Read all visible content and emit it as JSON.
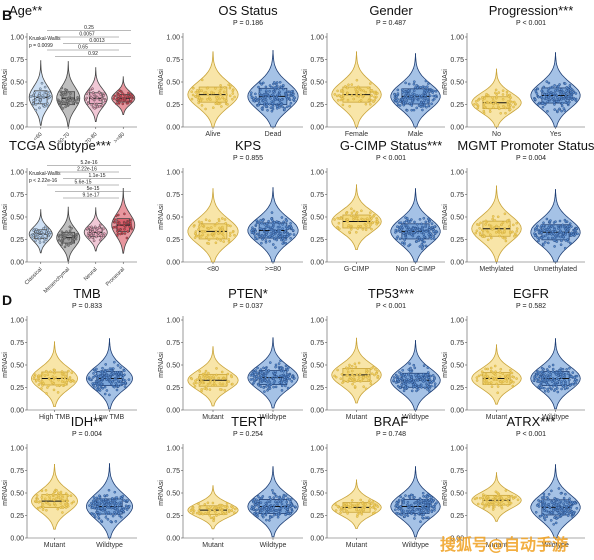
{
  "panel_labels": [
    "B",
    "D"
  ],
  "watermark_text": "搜狐号@自动手游",
  "colors": {
    "yellow": "#f2d060",
    "yellow_stroke": "#c9a43a",
    "blue": "#5b8fd1",
    "blue_stroke": "#1f3f75",
    "light_blue": "#a8c8ec",
    "grey": "#8a8a8a",
    "pink": "#e69ab4",
    "red": "#d6404e"
  },
  "chart_data": [
    {
      "type": "violin",
      "title": "Age**",
      "pvalue": "",
      "test": "Kruskal-Wallis",
      "test_p": "p = 0.0099",
      "comparisons": [
        "0.25",
        "0.0057",
        "0.0013",
        "0.65",
        "0.92"
      ],
      "ylabel": "mRNAsi",
      "ylim": [
        0,
        1
      ],
      "yticks": [
        "0.00",
        "0.25",
        "0.50",
        "0.75",
        "1.00"
      ],
      "ytick_values": [
        0,
        0.25,
        0.5,
        0.75,
        1
      ],
      "categories": [
        "<60",
        "60-70",
        "70-80",
        ">=80"
      ],
      "medians": [
        0.33,
        0.32,
        0.32,
        0.32
      ],
      "spreads": [
        0.12,
        0.12,
        0.1,
        0.07
      ],
      "colors": [
        "light_blue",
        "grey",
        "pink",
        "red"
      ]
    },
    {
      "type": "violin",
      "title": "OS Status",
      "pvalue": "P = 0.186",
      "ylabel": "mRNAsi",
      "ylim": [
        0,
        1
      ],
      "yticks": [
        "0.00",
        "0.25",
        "0.50",
        "0.75",
        "1.00"
      ],
      "ytick_values": [
        0,
        0.25,
        0.5,
        0.75,
        1
      ],
      "categories": [
        "Alive",
        "Dead"
      ],
      "medians": [
        0.36,
        0.34
      ],
      "spreads": [
        0.14,
        0.15
      ],
      "colors": [
        "yellow",
        "blue"
      ]
    },
    {
      "type": "violin",
      "title": "Gender",
      "pvalue": "P = 0.487",
      "ylabel": "mRNAsi",
      "ylim": [
        0,
        1
      ],
      "yticks": [
        "0.00",
        "0.25",
        "0.50",
        "0.75",
        "1.00"
      ],
      "ytick_values": [
        0,
        0.25,
        0.5,
        0.75,
        1
      ],
      "categories": [
        "Female",
        "Male"
      ],
      "medians": [
        0.36,
        0.34
      ],
      "spreads": [
        0.14,
        0.14
      ],
      "colors": [
        "yellow",
        "blue"
      ]
    },
    {
      "type": "violin",
      "title": "Progression***",
      "pvalue": "P < 0.001",
      "ylabel": "mRNAsi",
      "ylim": [
        0,
        1
      ],
      "yticks": [
        "0.00",
        "0.25",
        "0.50",
        "0.75",
        "1.00"
      ],
      "ytick_values": [
        0,
        0.25,
        0.5,
        0.75,
        1
      ],
      "categories": [
        "No",
        "Yes"
      ],
      "medians": [
        0.27,
        0.35
      ],
      "spreads": [
        0.11,
        0.14
      ],
      "colors": [
        "yellow",
        "blue"
      ]
    },
    {
      "type": "violin",
      "title": "TCGA Subtype***",
      "pvalue": "",
      "test": "Kruskal-Wallis",
      "test_p": "p < 2.22e-16",
      "comparisons": [
        "5.2e-16",
        "2.22e-16",
        "1.1e-15",
        "5.6e-15",
        "5e-15",
        "9.1e-17"
      ],
      "ylabel": "mRNAsi",
      "ylim": [
        0,
        1
      ],
      "yticks": [
        "0.00",
        "0.25",
        "0.50",
        "0.75",
        "1.00"
      ],
      "ytick_values": [
        0,
        0.25,
        0.5,
        0.75,
        1
      ],
      "categories": [
        "Classical",
        "Mesenchymal",
        "Neural",
        "Proneural"
      ],
      "medians": [
        0.31,
        0.27,
        0.33,
        0.41
      ],
      "spreads": [
        0.08,
        0.1,
        0.08,
        0.12
      ],
      "colors": [
        "light_blue",
        "grey",
        "pink",
        "red"
      ]
    },
    {
      "type": "violin",
      "title": "KPS",
      "pvalue": "P = 0.855",
      "ylabel": "mRNAsi",
      "ylim": [
        0,
        1
      ],
      "yticks": [
        "0.00",
        "0.25",
        "0.50",
        "0.75",
        "1.00"
      ],
      "ytick_values": [
        0,
        0.25,
        0.5,
        0.75,
        1
      ],
      "categories": [
        "<80",
        ">=80"
      ],
      "medians": [
        0.34,
        0.35
      ],
      "spreads": [
        0.14,
        0.14
      ],
      "colors": [
        "yellow",
        "blue"
      ]
    },
    {
      "type": "violin",
      "title": "G-CIMP Status***",
      "pvalue": "P < 0.001",
      "ylabel": "mRNAsi",
      "ylim": [
        0,
        1
      ],
      "yticks": [
        "0.00",
        "0.25",
        "0.50",
        "0.75",
        "1.00"
      ],
      "ytick_values": [
        0,
        0.25,
        0.5,
        0.75,
        1
      ],
      "categories": [
        "G-CIMP",
        "Non G-CIMP"
      ],
      "medians": [
        0.45,
        0.34
      ],
      "spreads": [
        0.12,
        0.14
      ],
      "colors": [
        "yellow",
        "blue"
      ]
    },
    {
      "type": "violin",
      "title": "MGMT Promoter Status**",
      "pvalue": "P = 0.004",
      "ylabel": "mRNAsi",
      "ylim": [
        0,
        1
      ],
      "yticks": [
        "0.00",
        "0.25",
        "0.50",
        "0.75",
        "1.00"
      ],
      "ytick_values": [
        0,
        0.25,
        0.5,
        0.75,
        1
      ],
      "categories": [
        "Methylated",
        "Unmethylated"
      ],
      "medians": [
        0.37,
        0.33
      ],
      "spreads": [
        0.14,
        0.14
      ],
      "colors": [
        "yellow",
        "blue"
      ]
    },
    {
      "type": "violin",
      "title": "TMB",
      "pvalue": "P = 0.833",
      "ylabel": "mRNAsi",
      "ylim": [
        0,
        1
      ],
      "yticks": [
        "0.00",
        "0.25",
        "0.50",
        "0.75",
        "1.00"
      ],
      "ytick_values": [
        0,
        0.25,
        0.5,
        0.75,
        1
      ],
      "categories": [
        "High TMB",
        "Low TMB"
      ],
      "medians": [
        0.35,
        0.35
      ],
      "spreads": [
        0.12,
        0.13
      ],
      "colors": [
        "yellow",
        "blue"
      ]
    },
    {
      "type": "violin",
      "title": "PTEN*",
      "pvalue": "P = 0.037",
      "ylabel": "mRNAsi",
      "ylim": [
        0,
        1
      ],
      "yticks": [
        "0.00",
        "0.25",
        "0.50",
        "0.75",
        "1.00"
      ],
      "ytick_values": [
        0,
        0.25,
        0.5,
        0.75,
        1
      ],
      "categories": [
        "Mutant",
        "Wildtype"
      ],
      "medians": [
        0.33,
        0.36
      ],
      "spreads": [
        0.11,
        0.13
      ],
      "colors": [
        "yellow",
        "blue"
      ]
    },
    {
      "type": "violin",
      "title": "TP53***",
      "pvalue": "P < 0.001",
      "ylabel": "mRNAsi",
      "ylim": [
        0,
        1
      ],
      "yticks": [
        "0.00",
        "0.25",
        "0.50",
        "0.75",
        "1.00"
      ],
      "ytick_values": [
        0,
        0.25,
        0.5,
        0.75,
        1
      ],
      "categories": [
        "Mutant",
        "Wildtype"
      ],
      "medians": [
        0.39,
        0.33
      ],
      "spreads": [
        0.12,
        0.13
      ],
      "colors": [
        "yellow",
        "blue"
      ]
    },
    {
      "type": "violin",
      "title": "EGFR",
      "pvalue": "P = 0.582",
      "ylabel": "mRNAsi",
      "ylim": [
        0,
        1
      ],
      "yticks": [
        "0.00",
        "0.25",
        "0.50",
        "0.75",
        "1.00"
      ],
      "ytick_values": [
        0,
        0.25,
        0.5,
        0.75,
        1
      ],
      "categories": [
        "Mutant",
        "Wildtype"
      ],
      "medians": [
        0.35,
        0.35
      ],
      "spreads": [
        0.11,
        0.13
      ],
      "colors": [
        "yellow",
        "blue"
      ]
    },
    {
      "type": "violin",
      "title": "IDH**",
      "pvalue": "P = 0.004",
      "ylabel": "mRNAsi",
      "ylim": [
        0,
        1
      ],
      "yticks": [
        "0.00",
        "0.25",
        "0.50",
        "0.75",
        "1.00"
      ],
      "ytick_values": [
        0,
        0.25,
        0.5,
        0.75,
        1
      ],
      "categories": [
        "Mutant",
        "Wildtype"
      ],
      "medians": [
        0.41,
        0.35
      ],
      "spreads": [
        0.12,
        0.14
      ],
      "colors": [
        "yellow",
        "blue"
      ]
    },
    {
      "type": "violin",
      "title": "TERT",
      "pvalue": "P = 0.254",
      "ylabel": "mRNAsi",
      "ylim": [
        0,
        1
      ],
      "yticks": [
        "0.00",
        "0.25",
        "0.50",
        "0.75",
        "1.00"
      ],
      "ytick_values": [
        0,
        0.25,
        0.5,
        0.75,
        1
      ],
      "categories": [
        "Mutant",
        "Wildtype"
      ],
      "medians": [
        0.31,
        0.35
      ],
      "spreads": [
        0.08,
        0.13
      ],
      "colors": [
        "yellow",
        "blue"
      ]
    },
    {
      "type": "violin",
      "title": "BRAF",
      "pvalue": "P = 0.748",
      "ylabel": "mRNAsi",
      "ylim": [
        0,
        1
      ],
      "yticks": [
        "0.00",
        "0.25",
        "0.50",
        "0.75",
        "1.00"
      ],
      "ytick_values": [
        0,
        0.25,
        0.5,
        0.75,
        1
      ],
      "categories": [
        "Mutant",
        "Wildtype"
      ],
      "medians": [
        0.34,
        0.35
      ],
      "spreads": [
        0.09,
        0.13
      ],
      "colors": [
        "yellow",
        "blue"
      ]
    },
    {
      "type": "violin",
      "title": "ATRX***",
      "pvalue": "P < 0.001",
      "ylabel": "mRNAsi",
      "ylim": [
        0,
        1
      ],
      "yticks": [
        "0.00",
        "0.25",
        "0.50",
        "0.75",
        "1.00"
      ],
      "ytick_values": [
        0,
        0.25,
        0.5,
        0.75,
        1
      ],
      "categories": [
        "Mutant",
        "Wildtype"
      ],
      "medians": [
        0.42,
        0.34
      ],
      "spreads": [
        0.09,
        0.14
      ],
      "colors": [
        "yellow",
        "blue"
      ]
    }
  ]
}
